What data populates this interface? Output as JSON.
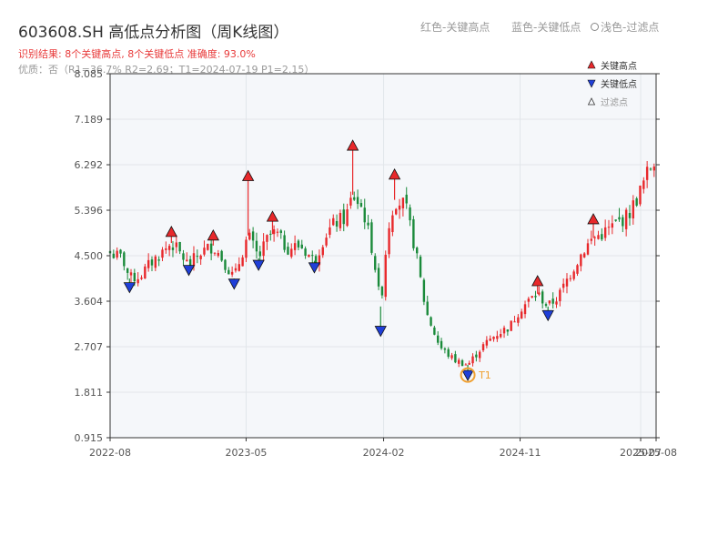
{
  "header": {
    "title": "603608.SH 高低点分析图（周K线图）",
    "result_text": "识别结果: 8个关键高点, 8个关键低点   准确度: 93.0%",
    "info_text": "优质：否（R1=36.7%  R2=2.69；T1=2024-07-19 P1=2.15）"
  },
  "top_legend": {
    "red": "红色-关键高点",
    "blue": "蓝色-关键低点",
    "gray": "浅色-过滤点"
  },
  "legend": {
    "high": "关键高点",
    "low": "关键低点",
    "filtered": "过滤点"
  },
  "colors": {
    "up": "#e8282b",
    "down": "#1a8a3a",
    "high_marker": "#e8282b",
    "low_marker": "#1f3fd8",
    "t1_circle": "#f0a030"
  },
  "chart_data": {
    "type": "candlestick",
    "y_ticks": [
      "8.085",
      "7.189",
      "6.292",
      "5.396",
      "4.500",
      "3.604",
      "2.707",
      "1.811",
      "0.915"
    ],
    "y_range": [
      0.915,
      8.085
    ],
    "x_ticks": [
      {
        "label": "2022-08",
        "date": "2022-08-01"
      },
      {
        "label": "2023-05",
        "date": "2023-05-01"
      },
      {
        "label": "2024-02",
        "date": "2024-02-01"
      },
      {
        "label": "2024-11",
        "date": "2024-11-01"
      },
      {
        "label": "2025-07",
        "date": "2025-07-01"
      },
      {
        "label": "2025-08",
        "date": "2025-08-01"
      }
    ],
    "x_range": [
      "2022-08-01",
      "2025-08-01"
    ],
    "grid": true,
    "key_highs": [
      {
        "date": "2022-12-02",
        "value": 4.95
      },
      {
        "date": "2023-02-24",
        "value": 4.88
      },
      {
        "date": "2023-05-05",
        "value": 6.05
      },
      {
        "date": "2023-06-23",
        "value": 5.25
      },
      {
        "date": "2023-12-01",
        "value": 6.65
      },
      {
        "date": "2024-02-23",
        "value": 6.08
      },
      {
        "date": "2024-12-06",
        "value": 3.98
      },
      {
        "date": "2025-03-28",
        "value": 5.2
      }
    ],
    "key_lows": [
      {
        "date": "2022-09-09",
        "value": 3.88
      },
      {
        "date": "2023-01-06",
        "value": 4.22
      },
      {
        "date": "2023-04-07",
        "value": 3.95
      },
      {
        "date": "2023-05-26",
        "value": 4.32
      },
      {
        "date": "2023-09-15",
        "value": 4.27
      },
      {
        "date": "2024-01-26",
        "value": 3.02
      },
      {
        "date": "2024-07-19",
        "value": 2.15
      },
      {
        "date": "2024-12-27",
        "value": 3.33
      }
    ],
    "t1": {
      "label": "T1",
      "date": "2024-07-19",
      "value": 2.15
    },
    "close_path": [
      [
        "2022-08-01",
        4.55
      ],
      [
        "2022-08-26",
        4.45
      ],
      [
        "2022-09-09",
        4.05
      ],
      [
        "2022-09-30",
        4.1
      ],
      [
        "2022-10-21",
        4.35
      ],
      [
        "2022-11-11",
        4.55
      ],
      [
        "2022-12-02",
        4.75
      ],
      [
        "2022-12-23",
        4.5
      ],
      [
        "2023-01-06",
        4.3
      ],
      [
        "2023-01-27",
        4.55
      ],
      [
        "2023-02-24",
        4.7
      ],
      [
        "2023-03-17",
        4.4
      ],
      [
        "2023-04-07",
        4.05
      ],
      [
        "2023-04-21",
        4.5
      ],
      [
        "2023-05-05",
        4.9
      ],
      [
        "2023-05-26",
        4.45
      ],
      [
        "2023-06-16",
        4.9
      ],
      [
        "2023-06-30",
        4.95
      ],
      [
        "2023-07-21",
        4.65
      ],
      [
        "2023-08-18",
        4.7
      ],
      [
        "2023-09-15",
        4.4
      ],
      [
        "2023-10-06",
        4.9
      ],
      [
        "2023-10-27",
        5.15
      ],
      [
        "2023-11-17",
        5.25
      ],
      [
        "2023-12-01",
        5.7
      ],
      [
        "2023-12-22",
        5.4
      ],
      [
        "2024-01-12",
        4.5
      ],
      [
        "2024-01-26",
        3.5
      ],
      [
        "2024-02-09",
        5.0
      ],
      [
        "2024-02-23",
        5.6
      ],
      [
        "2024-03-15",
        5.5
      ],
      [
        "2024-04-05",
        4.6
      ],
      [
        "2024-04-26",
        3.4
      ],
      [
        "2024-05-24",
        2.7
      ],
      [
        "2024-06-21",
        2.45
      ],
      [
        "2024-07-19",
        2.35
      ],
      [
        "2024-08-16",
        2.7
      ],
      [
        "2024-09-13",
        2.95
      ],
      [
        "2024-10-11",
        3.1
      ],
      [
        "2024-11-01",
        3.45
      ],
      [
        "2024-11-22",
        3.65
      ],
      [
        "2024-12-06",
        3.75
      ],
      [
        "2024-12-27",
        3.5
      ],
      [
        "2025-01-17",
        3.7
      ],
      [
        "2025-02-07",
        4.1
      ],
      [
        "2025-03-07",
        4.6
      ],
      [
        "2025-03-28",
        4.85
      ],
      [
        "2025-04-18",
        4.95
      ],
      [
        "2025-05-09",
        5.1
      ],
      [
        "2025-06-06",
        5.3
      ],
      [
        "2025-06-27",
        5.7
      ],
      [
        "2025-07-18",
        6.2
      ],
      [
        "2025-08-01",
        6.45
      ]
    ]
  }
}
